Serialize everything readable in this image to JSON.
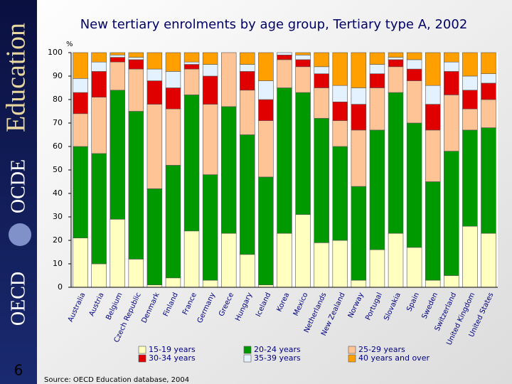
{
  "branding": {
    "education": "Education",
    "ocde": "OCDE",
    "oecd": "OECD"
  },
  "slide": {
    "number": "6",
    "source": "Source: OECD Education database, 2004"
  },
  "chart_data": {
    "type": "stacked_bar",
    "title": "New tertiary enrolments by age group, Tertiary type A, 2002",
    "y_unit": "%",
    "categories": [
      "Australia",
      "Austria",
      "Belgium",
      "Czech Republic",
      "Denmark",
      "Finland",
      "France",
      "Germany",
      "Greece",
      "Hungary",
      "Iceland",
      "Korea",
      "Mexico",
      "Netherlands",
      "New Zealand",
      "Norway",
      "Portugal",
      "Slovakia",
      "Spain",
      "Sweden",
      "Switzerland",
      "United Kingdom",
      "United States"
    ],
    "series": [
      {
        "name": "15-19 years",
        "color": "#ffffc0",
        "values": [
          21,
          10,
          29,
          12,
          1,
          4,
          24,
          3,
          23,
          14,
          1,
          23,
          31,
          19,
          20,
          3,
          16,
          23,
          17,
          3,
          5,
          26,
          23
        ]
      },
      {
        "name": "20-24 years",
        "color": "#009a00",
        "values": [
          39,
          47,
          55,
          63,
          41,
          48,
          58,
          45,
          54,
          51,
          46,
          62,
          52,
          53,
          40,
          40,
          51,
          60,
          53,
          42,
          53,
          41,
          45
        ]
      },
      {
        "name": "25-29 years",
        "color": "#ffc496",
        "values": [
          14,
          24,
          12,
          18,
          36,
          24,
          11,
          30,
          23,
          19,
          24,
          12,
          11,
          13,
          11,
          24,
          18,
          11,
          18,
          22,
          24,
          9,
          12
        ]
      },
      {
        "name": "30-34 years",
        "color": "#e00000",
        "values": [
          9,
          11,
          2,
          4,
          10,
          9,
          2,
          12,
          0,
          8,
          9,
          2,
          3,
          6,
          8,
          11,
          6,
          3,
          5,
          11,
          10,
          8,
          7
        ]
      },
      {
        "name": "35-39 years",
        "color": "#e4f2ff",
        "values": [
          6,
          4,
          1,
          1,
          5,
          7,
          1,
          5,
          0,
          3,
          8,
          1,
          2,
          3,
          7,
          7,
          4,
          1,
          4,
          8,
          4,
          6,
          4
        ]
      },
      {
        "name": "40 years and over",
        "color": "#ffa000",
        "values": [
          11,
          4,
          1,
          2,
          7,
          8,
          4,
          5,
          0,
          5,
          12,
          0,
          1,
          6,
          14,
          15,
          5,
          2,
          3,
          14,
          4,
          10,
          9
        ]
      }
    ],
    "ylim": [
      0,
      100
    ],
    "yticks": [
      0,
      10,
      20,
      30,
      40,
      50,
      60,
      70,
      80,
      90,
      100
    ],
    "grid": false
  }
}
